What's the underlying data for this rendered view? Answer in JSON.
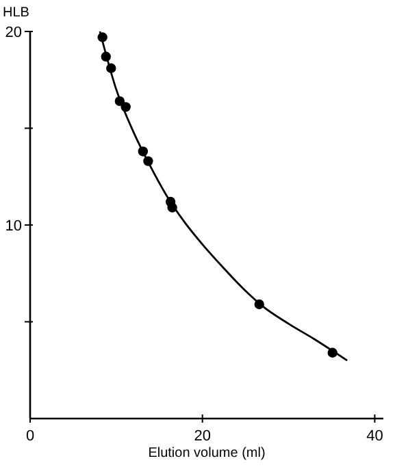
{
  "chart_data": {
    "type": "scatter",
    "xlabel": "Elution volume (ml)",
    "ylabel": "HLB",
    "xlim": [
      0,
      41
    ],
    "ylim": [
      0,
      20
    ],
    "xticks": [
      0,
      20,
      40
    ],
    "yticks": [
      {
        "value": 5,
        "label": null
      },
      10,
      {
        "value": 15,
        "label": null
      },
      20
    ],
    "grid": false,
    "series": [
      {
        "type": "scatter",
        "marker": "circle",
        "color": "#000000",
        "x": [
          8.4,
          8.8,
          9.4,
          10.4,
          11.1,
          13.1,
          13.7,
          16.3,
          16.5,
          26.6,
          35.1
        ],
        "values": [
          19.7,
          18.7,
          18.1,
          16.4,
          16.1,
          13.8,
          13.3,
          11.2,
          10.9,
          5.9,
          3.4
        ]
      },
      {
        "type": "line",
        "color": "#000000",
        "x": [
          8.1,
          10,
          12,
          14,
          16,
          18,
          20,
          22,
          25,
          27,
          30,
          33,
          36.8
        ],
        "values": [
          20,
          17,
          14.8,
          13,
          11.4,
          10.1,
          9,
          8,
          6.6,
          5.8,
          4.9,
          4.1,
          3
        ]
      }
    ]
  }
}
